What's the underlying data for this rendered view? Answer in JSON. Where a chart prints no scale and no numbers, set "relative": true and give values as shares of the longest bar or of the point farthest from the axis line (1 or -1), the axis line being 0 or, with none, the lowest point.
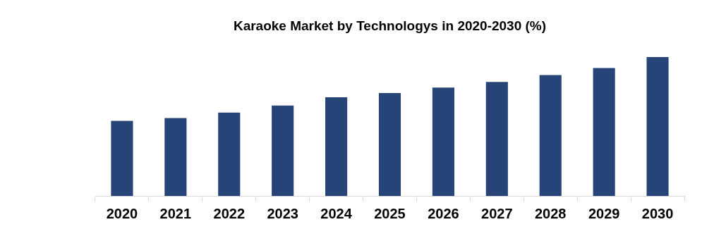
{
  "chart_data": {
    "type": "bar",
    "title": "Karaoke Market by Technologys in 2020-2030 (%)",
    "relative": true,
    "categories": [
      "2020",
      "2021",
      "2022",
      "2023",
      "2024",
      "2025",
      "2026",
      "2027",
      "2028",
      "2029",
      "2030"
    ],
    "values": [
      0.54,
      0.56,
      0.6,
      0.65,
      0.71,
      0.74,
      0.78,
      0.82,
      0.87,
      0.92,
      1
    ],
    "color": "#264478",
    "grid": false,
    "legend": false
  }
}
